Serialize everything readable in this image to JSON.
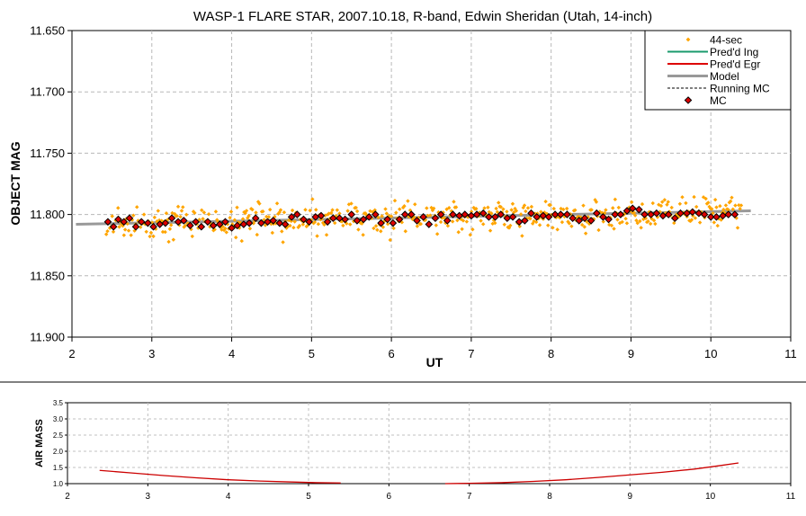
{
  "chart_data": [
    {
      "type": "scatter",
      "title": "WASP-1 FLARE STAR, 2007.10.18, R-band, Edwin Sheridan (Utah, 14-inch)",
      "xlabel": "UT",
      "ylabel": "OBJECT MAG",
      "xlim": [
        2,
        11
      ],
      "ylim": [
        11.65,
        11.9
      ],
      "y_inverted": true,
      "x_ticks": [
        "2",
        "3",
        "4",
        "5",
        "6",
        "7",
        "8",
        "9",
        "10",
        "11"
      ],
      "y_ticks": [
        "11.650",
        "11.700",
        "11.750",
        "11.800",
        "11.850",
        "11.900"
      ],
      "grid": true,
      "legend_position": "top-right",
      "legend": [
        "44-sec",
        "Pred'd Ing",
        "Pred'd Egr",
        "Model",
        "Running MC",
        "MC"
      ],
      "colors": {
        "raw": "#ffa500",
        "pred_ing": "#1a9a6c",
        "pred_egr": "#dd0000",
        "model": "#999999",
        "running_mc": "#000000",
        "mc_fill": "#dd0000",
        "mc_edge": "#000000"
      },
      "raw_time_range": [
        2.43,
        10.38
      ],
      "raw_points_count": 540,
      "model_line": {
        "x": [
          2.05,
          10.5
        ],
        "y": [
          11.808,
          11.797
        ]
      },
      "mc_points": {
        "x": [
          2.45,
          2.52,
          2.58,
          2.65,
          2.72,
          2.8,
          2.87,
          2.95,
          3.02,
          3.1,
          3.17,
          3.25,
          3.33,
          3.4,
          3.48,
          3.55,
          3.62,
          3.7,
          3.77,
          3.85,
          3.92,
          4.0,
          4.07,
          4.15,
          4.22,
          4.3,
          4.37,
          4.45,
          4.52,
          4.6,
          4.67,
          4.75,
          4.82,
          4.9,
          4.97,
          5.05,
          5.12,
          5.2,
          5.27,
          5.35,
          5.42,
          5.5,
          5.57,
          5.65,
          5.72,
          5.8,
          5.87,
          5.95,
          6.02,
          6.1,
          6.17,
          6.25,
          6.32,
          6.4,
          6.47,
          6.55,
          6.62,
          6.7,
          6.77,
          6.85,
          6.92,
          7.0,
          7.07,
          7.15,
          7.22,
          7.3,
          7.37,
          7.45,
          7.52,
          7.6,
          7.67,
          7.75,
          7.82,
          7.9,
          7.97,
          8.05,
          8.12,
          8.2,
          8.27,
          8.35,
          8.42,
          8.5,
          8.57,
          8.65,
          8.72,
          8.8,
          8.87,
          8.95,
          9.02,
          9.1,
          9.17,
          9.25,
          9.32,
          9.4,
          9.47,
          9.55,
          9.62,
          9.7,
          9.77,
          9.85,
          9.92,
          10.0,
          10.07,
          10.15,
          10.22,
          10.3
        ],
        "y": [
          11.806,
          11.81,
          11.804,
          11.806,
          11.803,
          11.81,
          11.806,
          11.807,
          11.81,
          11.808,
          11.807,
          11.803,
          11.806,
          11.805,
          11.809,
          11.806,
          11.81,
          11.806,
          11.809,
          11.808,
          11.806,
          11.811,
          11.809,
          11.808,
          11.807,
          11.803,
          11.807,
          11.806,
          11.805,
          11.807,
          11.808,
          11.802,
          11.8,
          11.804,
          11.806,
          11.802,
          11.801,
          11.806,
          11.803,
          11.803,
          11.804,
          11.8,
          11.805,
          11.804,
          11.802,
          11.8,
          11.807,
          11.804,
          11.807,
          11.804,
          11.8,
          11.8,
          11.805,
          11.802,
          11.808,
          11.803,
          11.8,
          11.805,
          11.8,
          11.801,
          11.8,
          11.801,
          11.8,
          11.799,
          11.802,
          11.802,
          11.8,
          11.803,
          11.802,
          11.806,
          11.805,
          11.799,
          11.802,
          11.801,
          11.802,
          11.8,
          11.8,
          11.8,
          11.803,
          11.805,
          11.803,
          11.805,
          11.799,
          11.802,
          11.804,
          11.8,
          11.8,
          11.797,
          11.795,
          11.796,
          11.8,
          11.8,
          11.799,
          11.801,
          11.8,
          11.803,
          11.799,
          11.799,
          11.798,
          11.799,
          11.8,
          11.802,
          11.802,
          11.801,
          11.8,
          11.8
        ]
      }
    },
    {
      "type": "line",
      "title": "",
      "xlabel": "",
      "ylabel": "AIR MASS",
      "xlim": [
        2,
        11
      ],
      "ylim": [
        1.0,
        3.5
      ],
      "x_ticks": [
        "2",
        "3",
        "4",
        "5",
        "6",
        "7",
        "8",
        "9",
        "10",
        "11"
      ],
      "y_ticks": [
        "1.0",
        "1.5",
        "2.0",
        "2.5",
        "3.0",
        "3.5"
      ],
      "grid": true,
      "color": "#cc0000",
      "segments": [
        {
          "x": [
            2.4,
            2.8,
            3.2,
            3.6,
            4.0,
            4.4,
            4.8,
            5.1,
            5.4
          ],
          "y": [
            1.41,
            1.33,
            1.25,
            1.18,
            1.12,
            1.08,
            1.05,
            1.03,
            1.02
          ]
        },
        {
          "x": [
            6.7,
            7.0,
            7.4,
            7.8,
            8.2,
            8.6,
            9.0,
            9.4,
            9.8,
            10.1,
            10.35
          ],
          "y": [
            1.0,
            1.01,
            1.03,
            1.07,
            1.12,
            1.19,
            1.27,
            1.35,
            1.45,
            1.55,
            1.64
          ]
        }
      ]
    }
  ]
}
